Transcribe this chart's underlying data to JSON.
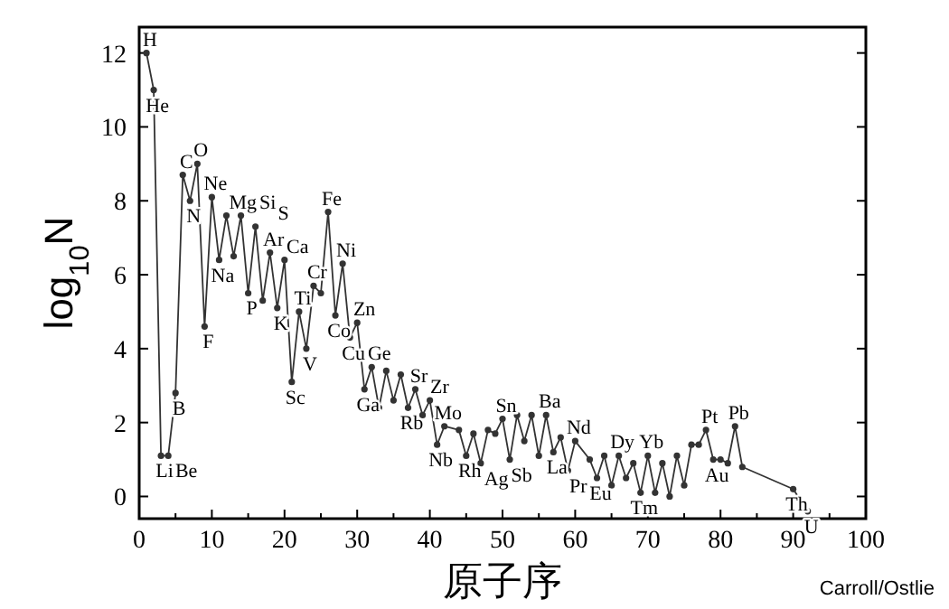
{
  "chart_data": {
    "type": "line",
    "xlabel": "原子序",
    "ylabel": "log$_{10}$N",
    "color": "#333333",
    "marker": "circle",
    "grid": false,
    "xlim": [
      0,
      100
    ],
    "ylim": [
      -0.6,
      12.7
    ],
    "xticks": [
      0,
      {
        "value": 5,
        "label": null
      },
      10,
      {
        "value": 15,
        "label": null
      },
      20,
      {
        "value": 25,
        "label": null
      },
      30,
      {
        "value": 35,
        "label": null
      },
      40,
      {
        "value": 45,
        "label": null
      },
      50,
      {
        "value": 55,
        "label": null
      },
      60,
      {
        "value": 65,
        "label": null
      },
      70,
      {
        "value": 75,
        "label": null
      },
      80,
      {
        "value": 85,
        "label": null
      },
      90,
      {
        "value": 95,
        "label": null
      },
      100
    ],
    "yticks": [
      0,
      2,
      4,
      6,
      8,
      10,
      12
    ],
    "x": [
      1,
      2,
      3,
      4,
      5,
      6,
      7,
      8,
      9,
      10,
      11,
      12,
      13,
      14,
      15,
      16,
      17,
      18,
      19,
      20,
      21,
      22,
      23,
      24,
      25,
      26,
      27,
      28,
      29,
      30,
      31,
      32,
      33,
      34,
      35,
      36,
      37,
      38,
      39,
      40,
      41,
      42,
      44,
      45,
      46,
      47,
      48,
      49,
      50,
      51,
      52,
      53,
      54,
      55,
      56,
      57,
      58,
      59,
      60,
      62,
      63,
      64,
      65,
      66,
      67,
      68,
      69,
      70,
      71,
      72,
      73,
      74,
      75,
      76,
      77,
      78,
      79,
      80,
      81,
      82,
      83,
      90,
      92
    ],
    "values": [
      12,
      11.0,
      1.1,
      1.1,
      2.8,
      8.7,
      8.0,
      9.0,
      4.6,
      8.1,
      6.4,
      7.6,
      6.5,
      7.6,
      5.5,
      7.3,
      5.3,
      6.6,
      5.1,
      6.4,
      3.1,
      5.0,
      4.0,
      5.7,
      5.5,
      7.7,
      4.9,
      6.3,
      4.3,
      4.7,
      2.9,
      3.5,
      2.4,
      3.4,
      2.6,
      3.3,
      2.4,
      2.9,
      2.2,
      2.6,
      1.4,
      1.9,
      1.8,
      1.1,
      1.7,
      0.9,
      1.8,
      1.7,
      2.1,
      1.0,
      2.2,
      1.5,
      2.2,
      1.1,
      2.2,
      1.2,
      1.6,
      0.7,
      1.5,
      1.0,
      0.5,
      1.1,
      0.3,
      1.1,
      0.5,
      0.9,
      0.1,
      1.1,
      0.1,
      0.9,
      0.0,
      1.1,
      0.3,
      1.4,
      1.4,
      1.8,
      1.0,
      1.0,
      0.9,
      1.9,
      0.8,
      0.2,
      -0.4
    ],
    "annotations": [
      {
        "text": "H",
        "x": 1,
        "y": 12
      },
      {
        "text": "He",
        "x": 2,
        "y": 11.0
      },
      {
        "text": "Li",
        "x": 3,
        "y": 1.1
      },
      {
        "text": "Be",
        "x": 4,
        "y": 1.1
      },
      {
        "text": "B",
        "x": 5,
        "y": 2.8
      },
      {
        "text": "C",
        "x": 6,
        "y": 8.7
      },
      {
        "text": "N",
        "x": 7,
        "y": 8.0
      },
      {
        "text": "O",
        "x": 8,
        "y": 9.0
      },
      {
        "text": "F",
        "x": 9,
        "y": 4.6
      },
      {
        "text": "Ne",
        "x": 10,
        "y": 8.1
      },
      {
        "text": "Na",
        "x": 11,
        "y": 6.4
      },
      {
        "text": "Mg",
        "x": 12,
        "y": 7.6
      },
      {
        "text": "Si",
        "x": 14,
        "y": 7.6
      },
      {
        "text": "P",
        "x": 15,
        "y": 5.5
      },
      {
        "text": "S",
        "x": 16,
        "y": 7.3
      },
      {
        "text": "Ar",
        "x": 18,
        "y": 6.6
      },
      {
        "text": "K",
        "x": 19,
        "y": 5.1
      },
      {
        "text": "Ca",
        "x": 20,
        "y": 6.4
      },
      {
        "text": "Sc",
        "x": 21,
        "y": 3.1
      },
      {
        "text": "Ti",
        "x": 22,
        "y": 5.0
      },
      {
        "text": "V",
        "x": 23,
        "y": 4.0
      },
      {
        "text": "Cr",
        "x": 24,
        "y": 5.7
      },
      {
        "text": "Fe",
        "x": 26,
        "y": 7.7
      },
      {
        "text": "Co",
        "x": 27,
        "y": 4.9
      },
      {
        "text": "Ni",
        "x": 28,
        "y": 6.3
      },
      {
        "text": "Cu",
        "x": 29,
        "y": 4.3
      },
      {
        "text": "Zn",
        "x": 30,
        "y": 4.7
      },
      {
        "text": "Ga",
        "x": 31,
        "y": 2.9
      },
      {
        "text": "Ge",
        "x": 32,
        "y": 3.5
      },
      {
        "text": "Rb",
        "x": 37,
        "y": 2.4
      },
      {
        "text": "Sr",
        "x": 38,
        "y": 2.9
      },
      {
        "text": "Zr",
        "x": 40,
        "y": 2.6
      },
      {
        "text": "Nb",
        "x": 41,
        "y": 1.4
      },
      {
        "text": "Mo",
        "x": 42,
        "y": 1.9
      },
      {
        "text": "Rh",
        "x": 45,
        "y": 1.1
      },
      {
        "text": "Ag",
        "x": 47,
        "y": 0.9
      },
      {
        "text": "Sn",
        "x": 50,
        "y": 2.1
      },
      {
        "text": "Sb",
        "x": 51,
        "y": 1.0
      },
      {
        "text": "Ba",
        "x": 56,
        "y": 2.2
      },
      {
        "text": "La",
        "x": 57,
        "y": 1.2
      },
      {
        "text": "Pr",
        "x": 59,
        "y": 0.7
      },
      {
        "text": "Nd",
        "x": 60,
        "y": 1.5
      },
      {
        "text": "Eu",
        "x": 63,
        "y": 0.5
      },
      {
        "text": "Dy",
        "x": 66,
        "y": 1.1
      },
      {
        "text": "Tm",
        "x": 69,
        "y": 0.1
      },
      {
        "text": "Yb",
        "x": 70,
        "y": 1.1
      },
      {
        "text": "Pt",
        "x": 78,
        "y": 1.8
      },
      {
        "text": "Au",
        "x": 79,
        "y": 1.0
      },
      {
        "text": "Pb",
        "x": 82,
        "y": 1.9
      },
      {
        "text": "Th",
        "x": 90,
        "y": 0.2
      },
      {
        "text": "U",
        "x": 92,
        "y": -0.4
      },
      "Carroll/Ostlie"
    ]
  }
}
